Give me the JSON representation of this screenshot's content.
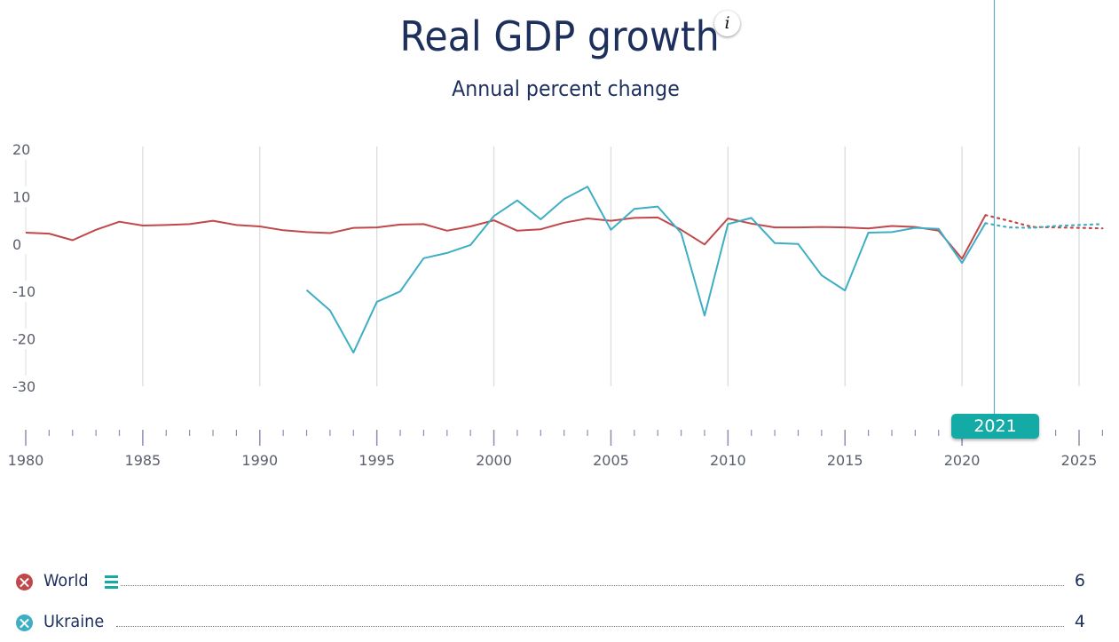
{
  "header": {
    "title": "Real GDP growth",
    "subtitle": "Annual percent change",
    "info_icon": "info-icon",
    "info_glyph": "i"
  },
  "selected_year": "2021",
  "legend": [
    {
      "name": "World",
      "value": "6",
      "color": "#c0484b",
      "remove_icon": "close-circle-icon",
      "has_menu": true
    },
    {
      "name": "Ukraine",
      "value": "4",
      "color": "#3eaec4",
      "remove_icon": "close-circle-icon",
      "has_menu": false
    }
  ],
  "chart_data": {
    "type": "line",
    "title": "Real GDP growth",
    "subtitle": "Annual percent change",
    "xlabel": "",
    "ylabel": "",
    "xlim": [
      1980,
      2026
    ],
    "ylim": [
      -30,
      20
    ],
    "yticks": [
      20,
      10,
      0,
      -10,
      -20,
      -30
    ],
    "ytick_labels": [
      "20",
      "10",
      "0",
      "-10",
      "-20",
      "-30"
    ],
    "xticks": [
      1980,
      1985,
      1990,
      1995,
      2000,
      2005,
      2010,
      2015,
      2020,
      2025
    ],
    "xtick_labels": [
      "1980",
      "1985",
      "1990",
      "1995",
      "2000",
      "2005",
      "2010",
      "2015",
      "2020",
      "2025"
    ],
    "grid": "vertical",
    "legend_position": "bottom",
    "forecast_start": 2021,
    "selected_year": 2021,
    "series": [
      {
        "name": "World",
        "color": "#c0484b",
        "x": [
          1980,
          1981,
          1982,
          1983,
          1984,
          1985,
          1986,
          1987,
          1988,
          1989,
          1990,
          1991,
          1992,
          1993,
          1994,
          1995,
          1996,
          1997,
          1998,
          1999,
          2000,
          2001,
          2002,
          2003,
          2004,
          2005,
          2006,
          2007,
          2008,
          2009,
          2010,
          2011,
          2012,
          2013,
          2014,
          2015,
          2016,
          2017,
          2018,
          2019,
          2020,
          2021,
          2022,
          2023,
          2024,
          2025,
          2026
        ],
        "values": [
          2.4,
          2.2,
          0.8,
          3.0,
          4.7,
          3.9,
          4.0,
          4.2,
          4.9,
          4.0,
          3.7,
          2.9,
          2.5,
          2.3,
          3.4,
          3.5,
          4.1,
          4.2,
          2.8,
          3.7,
          5.0,
          2.8,
          3.1,
          4.5,
          5.4,
          4.9,
          5.5,
          5.6,
          3.0,
          -0.1,
          5.4,
          4.3,
          3.5,
          3.5,
          3.6,
          3.5,
          3.3,
          3.8,
          3.6,
          2.8,
          -3.1,
          6.1,
          4.9,
          3.6,
          3.5,
          3.4,
          3.3
        ]
      },
      {
        "name": "Ukraine",
        "color": "#3eaec4",
        "x": [
          1992,
          1993,
          1994,
          1995,
          1996,
          1997,
          1998,
          1999,
          2000,
          2001,
          2002,
          2003,
          2004,
          2005,
          2006,
          2007,
          2008,
          2009,
          2010,
          2011,
          2012,
          2013,
          2014,
          2015,
          2016,
          2017,
          2018,
          2019,
          2020,
          2021,
          2022,
          2023,
          2024,
          2025,
          2026
        ],
        "values": [
          -9.7,
          -14.0,
          -22.9,
          -12.2,
          -10.0,
          -3.0,
          -1.9,
          -0.2,
          5.9,
          9.2,
          5.2,
          9.5,
          12.1,
          3.0,
          7.4,
          7.9,
          2.3,
          -15.1,
          4.2,
          5.5,
          0.2,
          0.0,
          -6.6,
          -9.8,
          2.4,
          2.5,
          3.4,
          3.2,
          -4.0,
          4.4,
          3.5,
          3.4,
          3.8,
          4.0,
          4.2
        ]
      }
    ]
  }
}
